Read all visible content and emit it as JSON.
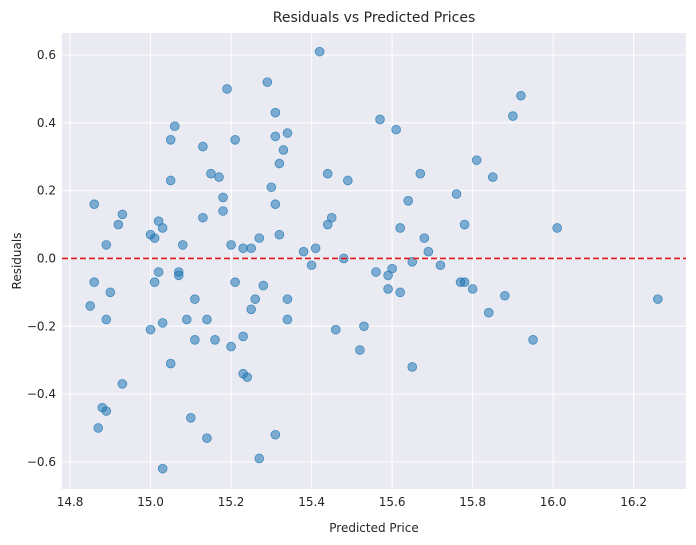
{
  "chart_data": {
    "type": "scatter",
    "title": "Residuals vs Predicted Prices",
    "xlabel": "Predicted Price",
    "ylabel": "Residuals",
    "xlim": [
      14.78,
      16.33
    ],
    "ylim": [
      -0.68,
      0.665
    ],
    "xticks": [
      14.8,
      15.0,
      15.2,
      15.4,
      15.6,
      15.8,
      16.0,
      16.2
    ],
    "xtick_labels": [
      "14.8",
      "15.0",
      "15.2",
      "15.4",
      "15.6",
      "15.8",
      "16.0",
      "16.2"
    ],
    "yticks": [
      -0.6,
      -0.4,
      -0.2,
      0.0,
      0.2,
      0.4,
      0.6
    ],
    "ytick_labels": [
      "−0.6",
      "−0.4",
      "−0.2",
      "0.0",
      "0.2",
      "0.4",
      "0.6"
    ],
    "grid": true,
    "reference_line": {
      "y": 0,
      "style": "dashed"
    },
    "colors": {
      "point": "#1f77b4",
      "reference_line": "#e31a1c",
      "plot_background": "#eaeaf2",
      "grid": "#ffffff"
    },
    "points": [
      [
        14.85,
        -0.14
      ],
      [
        14.86,
        0.16
      ],
      [
        14.86,
        -0.07
      ],
      [
        14.87,
        -0.5
      ],
      [
        14.88,
        -0.44
      ],
      [
        14.89,
        0.04
      ],
      [
        14.89,
        -0.18
      ],
      [
        14.89,
        -0.45
      ],
      [
        14.9,
        -0.1
      ],
      [
        14.92,
        0.1
      ],
      [
        14.93,
        0.13
      ],
      [
        14.93,
        -0.37
      ],
      [
        15.0,
        0.07
      ],
      [
        15.0,
        -0.21
      ],
      [
        15.01,
        0.06
      ],
      [
        15.01,
        -0.07
      ],
      [
        15.02,
        0.11
      ],
      [
        15.02,
        -0.04
      ],
      [
        15.03,
        0.09
      ],
      [
        15.03,
        -0.19
      ],
      [
        15.03,
        -0.62
      ],
      [
        15.05,
        0.23
      ],
      [
        15.05,
        -0.31
      ],
      [
        15.05,
        0.35
      ],
      [
        15.06,
        0.39
      ],
      [
        15.07,
        -0.04
      ],
      [
        15.07,
        -0.05
      ],
      [
        15.08,
        0.04
      ],
      [
        15.09,
        -0.18
      ],
      [
        15.1,
        -0.47
      ],
      [
        15.11,
        -0.12
      ],
      [
        15.11,
        -0.24
      ],
      [
        15.13,
        0.33
      ],
      [
        15.13,
        0.12
      ],
      [
        15.14,
        -0.18
      ],
      [
        15.14,
        -0.53
      ],
      [
        15.15,
        0.25
      ],
      [
        15.16,
        -0.24
      ],
      [
        15.17,
        0.24
      ],
      [
        15.18,
        0.14
      ],
      [
        15.18,
        0.18
      ],
      [
        15.19,
        0.5
      ],
      [
        15.2,
        -0.26
      ],
      [
        15.2,
        0.04
      ],
      [
        15.21,
        0.35
      ],
      [
        15.21,
        -0.07
      ],
      [
        15.23,
        0.03
      ],
      [
        15.23,
        -0.23
      ],
      [
        15.23,
        -0.34
      ],
      [
        15.24,
        -0.35
      ],
      [
        15.25,
        -0.15
      ],
      [
        15.25,
        0.03
      ],
      [
        15.26,
        -0.12
      ],
      [
        15.27,
        0.06
      ],
      [
        15.27,
        -0.59
      ],
      [
        15.28,
        -0.08
      ],
      [
        15.29,
        0.52
      ],
      [
        15.3,
        0.21
      ],
      [
        15.31,
        0.16
      ],
      [
        15.31,
        -0.52
      ],
      [
        15.31,
        0.36
      ],
      [
        15.31,
        0.43
      ],
      [
        15.32,
        0.07
      ],
      [
        15.32,
        0.28
      ],
      [
        15.33,
        0.32
      ],
      [
        15.34,
        0.37
      ],
      [
        15.34,
        -0.12
      ],
      [
        15.34,
        -0.18
      ],
      [
        15.38,
        0.02
      ],
      [
        15.4,
        -0.02
      ],
      [
        15.41,
        0.03
      ],
      [
        15.42,
        0.61
      ],
      [
        15.44,
        0.1
      ],
      [
        15.44,
        0.25
      ],
      [
        15.45,
        0.12
      ],
      [
        15.46,
        -0.21
      ],
      [
        15.48,
        0.0
      ],
      [
        15.49,
        0.23
      ],
      [
        15.52,
        -0.27
      ],
      [
        15.53,
        -0.2
      ],
      [
        15.56,
        -0.04
      ],
      [
        15.57,
        0.41
      ],
      [
        15.59,
        -0.05
      ],
      [
        15.59,
        -0.09
      ],
      [
        15.6,
        -0.03
      ],
      [
        15.61,
        0.38
      ],
      [
        15.62,
        0.09
      ],
      [
        15.62,
        -0.1
      ],
      [
        15.64,
        0.17
      ],
      [
        15.65,
        -0.32
      ],
      [
        15.65,
        -0.01
      ],
      [
        15.67,
        0.25
      ],
      [
        15.68,
        0.06
      ],
      [
        15.69,
        0.02
      ],
      [
        15.72,
        -0.02
      ],
      [
        15.76,
        0.19
      ],
      [
        15.77,
        -0.07
      ],
      [
        15.78,
        0.1
      ],
      [
        15.78,
        -0.07
      ],
      [
        15.8,
        -0.09
      ],
      [
        15.81,
        0.29
      ],
      [
        15.84,
        -0.16
      ],
      [
        15.85,
        0.24
      ],
      [
        15.88,
        -0.11
      ],
      [
        15.9,
        0.42
      ],
      [
        15.92,
        0.48
      ],
      [
        15.95,
        -0.24
      ],
      [
        16.01,
        0.09
      ],
      [
        16.26,
        -0.12
      ]
    ]
  }
}
